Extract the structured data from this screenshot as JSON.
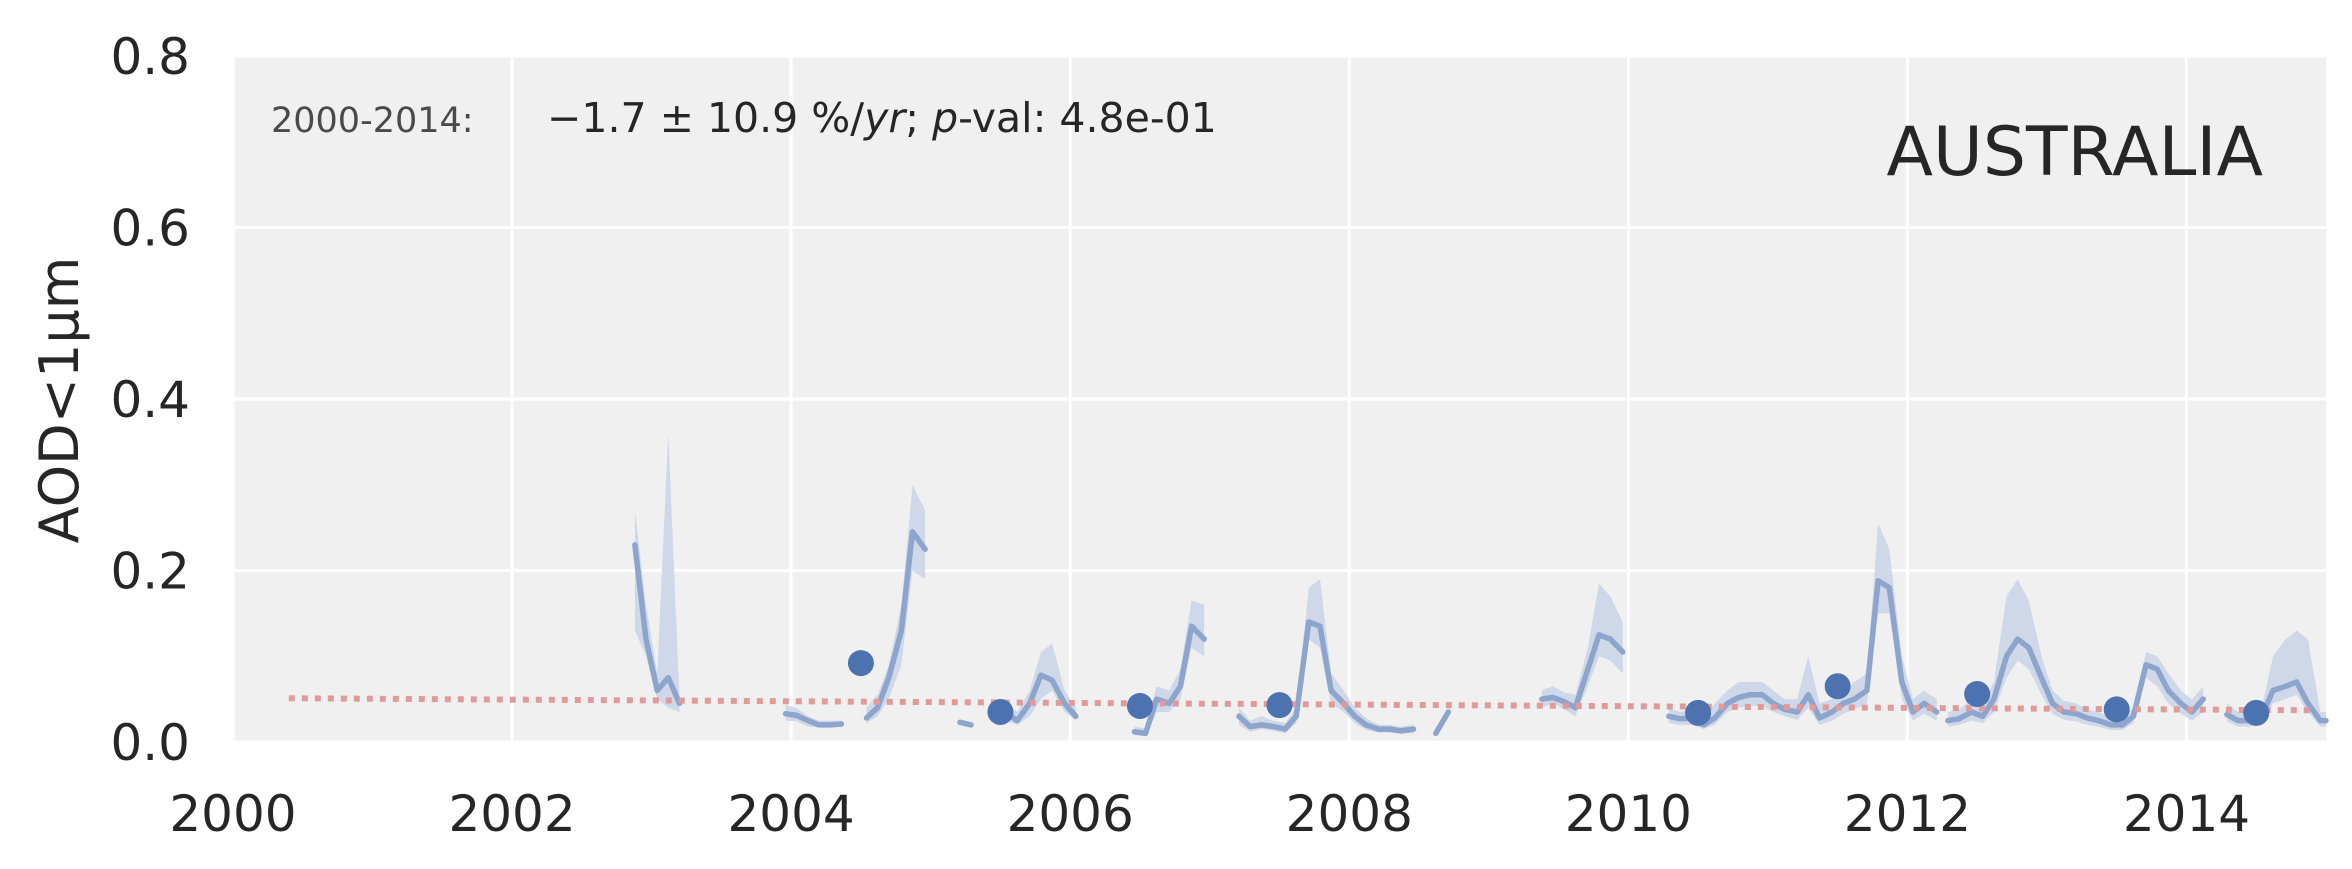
{
  "chart_data": {
    "type": "line",
    "ylabel": "AOD<1μm",
    "xlabel": "",
    "xlim": [
      2000,
      2015
    ],
    "ylim": [
      0,
      0.8
    ],
    "xticks": [
      2000,
      2002,
      2004,
      2006,
      2008,
      2010,
      2012,
      2014
    ],
    "xtick_labels": [
      "2000",
      "2002",
      "2004",
      "2006",
      "2008",
      "2010",
      "2012",
      "2014"
    ],
    "yticks": [
      0.0,
      0.2,
      0.4,
      0.6,
      0.8
    ],
    "ytick_labels": [
      "0.0",
      "0.2",
      "0.4",
      "0.6",
      "0.8"
    ],
    "grid": true,
    "background": "#f0f0f0",
    "region_label": "AUSTRALIA",
    "annotation": {
      "period": "2000-2014:",
      "trend": "−1.7 ± 10.9 %/",
      "trend_unit": "yr",
      "sep": "; ",
      "p_letter": "p",
      "p_text": "-val: 4.8e-01"
    },
    "colors": {
      "monthly_line": "#8da5cc",
      "band": "#c9d3e6",
      "annual_point": "#4c72b0",
      "trend_line": "#e09a9a"
    },
    "monthly_segments": [
      [
        [
          2002.88,
          0.23
        ],
        [
          2002.96,
          0.12
        ],
        [
          2003.04,
          0.06
        ],
        [
          2003.12,
          0.075
        ],
        [
          2003.2,
          0.045
        ]
      ],
      [
        [
          2003.96,
          0.033
        ],
        [
          2004.04,
          0.031
        ],
        [
          2004.12,
          0.025
        ],
        [
          2004.2,
          0.02
        ],
        [
          2004.28,
          0.02
        ],
        [
          2004.36,
          0.021
        ]
      ],
      [
        [
          2004.54,
          0.028
        ],
        [
          2004.62,
          0.04
        ],
        [
          2004.7,
          0.075
        ],
        [
          2004.79,
          0.13
        ],
        [
          2004.87,
          0.245
        ],
        [
          2004.96,
          0.225
        ]
      ],
      [
        [
          2005.21,
          0.023
        ],
        [
          2005.29,
          0.02
        ]
      ],
      [
        [
          2005.46,
          0.026
        ],
        [
          2005.54,
          0.034
        ],
        [
          2005.62,
          0.025
        ],
        [
          2005.71,
          0.045
        ],
        [
          2005.79,
          0.078
        ],
        [
          2005.87,
          0.072
        ],
        [
          2005.96,
          0.045
        ],
        [
          2006.04,
          0.03
        ]
      ],
      [
        [
          2006.46,
          0.012
        ],
        [
          2006.54,
          0.01
        ],
        [
          2006.62,
          0.05
        ],
        [
          2006.71,
          0.045
        ],
        [
          2006.79,
          0.065
        ],
        [
          2006.87,
          0.135
        ],
        [
          2006.96,
          0.12
        ]
      ],
      [
        [
          2007.21,
          0.03
        ],
        [
          2007.29,
          0.018
        ],
        [
          2007.37,
          0.02
        ],
        [
          2007.46,
          0.018
        ],
        [
          2007.54,
          0.015
        ],
        [
          2007.62,
          0.03
        ],
        [
          2007.71,
          0.14
        ],
        [
          2007.79,
          0.135
        ],
        [
          2007.87,
          0.06
        ],
        [
          2007.96,
          0.045
        ],
        [
          2008.04,
          0.03
        ],
        [
          2008.12,
          0.02
        ],
        [
          2008.21,
          0.015
        ],
        [
          2008.29,
          0.015
        ],
        [
          2008.37,
          0.013
        ],
        [
          2008.46,
          0.015
        ]
      ],
      [
        [
          2008.62,
          0.01
        ],
        [
          2008.71,
          0.035
        ]
      ],
      [
        [
          2009.38,
          0.05
        ],
        [
          2009.46,
          0.052
        ],
        [
          2009.54,
          0.047
        ],
        [
          2009.62,
          0.04
        ],
        [
          2009.71,
          0.085
        ],
        [
          2009.79,
          0.125
        ],
        [
          2009.87,
          0.12
        ],
        [
          2009.96,
          0.105
        ]
      ],
      [
        [
          2010.29,
          0.03
        ],
        [
          2010.37,
          0.027
        ],
        [
          2010.46,
          0.028
        ],
        [
          2010.54,
          0.02
        ],
        [
          2010.62,
          0.028
        ],
        [
          2010.71,
          0.045
        ],
        [
          2010.79,
          0.052
        ],
        [
          2010.87,
          0.055
        ],
        [
          2010.96,
          0.055
        ],
        [
          2011.04,
          0.045
        ],
        [
          2011.12,
          0.038
        ],
        [
          2011.21,
          0.035
        ],
        [
          2011.29,
          0.055
        ],
        [
          2011.37,
          0.028
        ],
        [
          2011.46,
          0.035
        ],
        [
          2011.54,
          0.045
        ],
        [
          2011.62,
          0.05
        ],
        [
          2011.71,
          0.06
        ],
        [
          2011.79,
          0.188
        ],
        [
          2011.87,
          0.18
        ],
        [
          2011.96,
          0.07
        ],
        [
          2012.04,
          0.035
        ],
        [
          2012.12,
          0.045
        ],
        [
          2012.21,
          0.035
        ]
      ],
      [
        [
          2012.29,
          0.025
        ],
        [
          2012.37,
          0.027
        ],
        [
          2012.46,
          0.035
        ],
        [
          2012.54,
          0.03
        ],
        [
          2012.62,
          0.05
        ],
        [
          2012.71,
          0.1
        ],
        [
          2012.79,
          0.12
        ],
        [
          2012.87,
          0.11
        ],
        [
          2012.96,
          0.075
        ],
        [
          2013.04,
          0.045
        ],
        [
          2013.12,
          0.035
        ],
        [
          2013.21,
          0.033
        ],
        [
          2013.29,
          0.028
        ],
        [
          2013.37,
          0.025
        ],
        [
          2013.46,
          0.02
        ],
        [
          2013.54,
          0.02
        ],
        [
          2013.62,
          0.03
        ],
        [
          2013.71,
          0.09
        ],
        [
          2013.79,
          0.085
        ],
        [
          2013.87,
          0.06
        ],
        [
          2013.96,
          0.045
        ],
        [
          2014.04,
          0.035
        ],
        [
          2014.12,
          0.05
        ]
      ],
      [
        [
          2014.29,
          0.032
        ],
        [
          2014.37,
          0.025
        ],
        [
          2014.46,
          0.025
        ],
        [
          2014.54,
          0.03
        ],
        [
          2014.62,
          0.06
        ],
        [
          2014.71,
          0.065
        ],
        [
          2014.79,
          0.07
        ],
        [
          2014.87,
          0.045
        ],
        [
          2014.96,
          0.025
        ],
        [
          2015.0,
          0.025
        ]
      ]
    ],
    "bands": [
      [
        [
          2002.88,
          0.13,
          0.27
        ],
        [
          2002.96,
          0.1,
          0.16
        ],
        [
          2003.04,
          0.05,
          0.08
        ],
        [
          2003.12,
          0.04,
          0.36
        ],
        [
          2003.2,
          0.035,
          0.05
        ]
      ],
      [
        [
          2003.96,
          0.025,
          0.043
        ],
        [
          2004.04,
          0.024,
          0.04
        ],
        [
          2004.12,
          0.018,
          0.03
        ],
        [
          2004.2,
          0.017,
          0.025
        ],
        [
          2004.28,
          0.017,
          0.025
        ],
        [
          2004.36,
          0.018,
          0.025
        ]
      ],
      [
        [
          2004.54,
          0.022,
          0.04
        ],
        [
          2004.62,
          0.03,
          0.055
        ],
        [
          2004.7,
          0.05,
          0.09
        ],
        [
          2004.79,
          0.09,
          0.16
        ],
        [
          2004.87,
          0.2,
          0.3
        ],
        [
          2004.96,
          0.19,
          0.27
        ]
      ],
      [
        [
          2005.46,
          0.02,
          0.035
        ],
        [
          2005.54,
          0.025,
          0.045
        ],
        [
          2005.62,
          0.02,
          0.035
        ],
        [
          2005.71,
          0.03,
          0.06
        ],
        [
          2005.79,
          0.05,
          0.105
        ],
        [
          2005.87,
          0.06,
          0.115
        ],
        [
          2005.96,
          0.035,
          0.06
        ],
        [
          2006.04,
          0.025,
          0.04
        ]
      ],
      [
        [
          2006.46,
          0.008,
          0.018
        ],
        [
          2006.54,
          0.007,
          0.016
        ],
        [
          2006.62,
          0.035,
          0.065
        ],
        [
          2006.71,
          0.035,
          0.06
        ],
        [
          2006.79,
          0.05,
          0.085
        ],
        [
          2006.87,
          0.11,
          0.165
        ],
        [
          2006.96,
          0.1,
          0.16
        ]
      ],
      [
        [
          2007.21,
          0.02,
          0.04
        ],
        [
          2007.29,
          0.012,
          0.025
        ],
        [
          2007.37,
          0.015,
          0.03
        ],
        [
          2007.46,
          0.013,
          0.025
        ],
        [
          2007.54,
          0.01,
          0.022
        ],
        [
          2007.62,
          0.022,
          0.04
        ],
        [
          2007.71,
          0.12,
          0.18
        ],
        [
          2007.79,
          0.11,
          0.19
        ],
        [
          2007.87,
          0.045,
          0.08
        ],
        [
          2007.96,
          0.035,
          0.06
        ],
        [
          2008.04,
          0.022,
          0.04
        ],
        [
          2008.12,
          0.014,
          0.028
        ],
        [
          2008.21,
          0.011,
          0.02
        ],
        [
          2008.29,
          0.011,
          0.02
        ],
        [
          2008.37,
          0.01,
          0.018
        ],
        [
          2008.46,
          0.01,
          0.02
        ]
      ],
      [
        [
          2009.38,
          0.04,
          0.06
        ],
        [
          2009.46,
          0.045,
          0.065
        ],
        [
          2009.54,
          0.038,
          0.058
        ],
        [
          2009.62,
          0.03,
          0.055
        ],
        [
          2009.71,
          0.065,
          0.11
        ],
        [
          2009.79,
          0.1,
          0.185
        ],
        [
          2009.87,
          0.095,
          0.17
        ],
        [
          2009.96,
          0.08,
          0.14
        ]
      ],
      [
        [
          2010.29,
          0.022,
          0.04
        ],
        [
          2010.37,
          0.02,
          0.035
        ],
        [
          2010.46,
          0.02,
          0.038
        ],
        [
          2010.54,
          0.015,
          0.03
        ],
        [
          2010.62,
          0.02,
          0.045
        ],
        [
          2010.71,
          0.035,
          0.06
        ],
        [
          2010.79,
          0.04,
          0.07
        ],
        [
          2010.87,
          0.042,
          0.07
        ],
        [
          2010.96,
          0.042,
          0.07
        ],
        [
          2011.04,
          0.035,
          0.06
        ],
        [
          2011.12,
          0.03,
          0.05
        ],
        [
          2011.21,
          0.026,
          0.05
        ],
        [
          2011.29,
          0.04,
          0.1
        ],
        [
          2011.37,
          0.02,
          0.045
        ],
        [
          2011.46,
          0.025,
          0.05
        ],
        [
          2011.54,
          0.033,
          0.06
        ],
        [
          2011.62,
          0.038,
          0.07
        ],
        [
          2011.71,
          0.045,
          0.08
        ],
        [
          2011.79,
          0.15,
          0.255
        ],
        [
          2011.87,
          0.15,
          0.225
        ],
        [
          2011.96,
          0.05,
          0.1
        ],
        [
          2012.04,
          0.025,
          0.05
        ],
        [
          2012.12,
          0.033,
          0.06
        ],
        [
          2012.21,
          0.025,
          0.05
        ]
      ],
      [
        [
          2012.29,
          0.018,
          0.035
        ],
        [
          2012.37,
          0.02,
          0.038
        ],
        [
          2012.46,
          0.025,
          0.05
        ],
        [
          2012.54,
          0.022,
          0.045
        ],
        [
          2012.62,
          0.035,
          0.07
        ],
        [
          2012.71,
          0.075,
          0.17
        ],
        [
          2012.79,
          0.095,
          0.19
        ],
        [
          2012.87,
          0.085,
          0.165
        ],
        [
          2012.96,
          0.055,
          0.1
        ],
        [
          2013.04,
          0.033,
          0.06
        ],
        [
          2013.12,
          0.026,
          0.048
        ],
        [
          2013.21,
          0.024,
          0.045
        ],
        [
          2013.29,
          0.02,
          0.038
        ],
        [
          2013.37,
          0.018,
          0.035
        ],
        [
          2013.46,
          0.014,
          0.028
        ],
        [
          2013.54,
          0.014,
          0.028
        ],
        [
          2013.62,
          0.022,
          0.04
        ],
        [
          2013.71,
          0.075,
          0.105
        ],
        [
          2013.79,
          0.065,
          0.1
        ],
        [
          2013.87,
          0.045,
          0.08
        ],
        [
          2013.96,
          0.033,
          0.06
        ],
        [
          2014.04,
          0.025,
          0.05
        ],
        [
          2014.12,
          0.035,
          0.065
        ]
      ],
      [
        [
          2014.29,
          0.024,
          0.045
        ],
        [
          2014.37,
          0.018,
          0.035
        ],
        [
          2014.46,
          0.018,
          0.035
        ],
        [
          2014.54,
          0.022,
          0.04
        ],
        [
          2014.62,
          0.045,
          0.1
        ],
        [
          2014.71,
          0.05,
          0.12
        ],
        [
          2014.79,
          0.055,
          0.13
        ],
        [
          2014.87,
          0.035,
          0.12
        ],
        [
          2014.96,
          0.018,
          0.035
        ],
        [
          2015.0,
          0.018,
          0.035
        ]
      ]
    ],
    "annual_points": {
      "x": [
        2004.5,
        2005.5,
        2006.5,
        2007.5,
        2010.5,
        2011.5,
        2012.5,
        2013.5,
        2014.5
      ],
      "y": [
        0.092,
        0.035,
        0.042,
        0.043,
        0.034,
        0.065,
        0.056,
        0.038,
        0.034
      ]
    },
    "trend_line": {
      "x": [
        2000.4,
        2014.9
      ],
      "y": [
        0.051,
        0.037
      ]
    }
  }
}
